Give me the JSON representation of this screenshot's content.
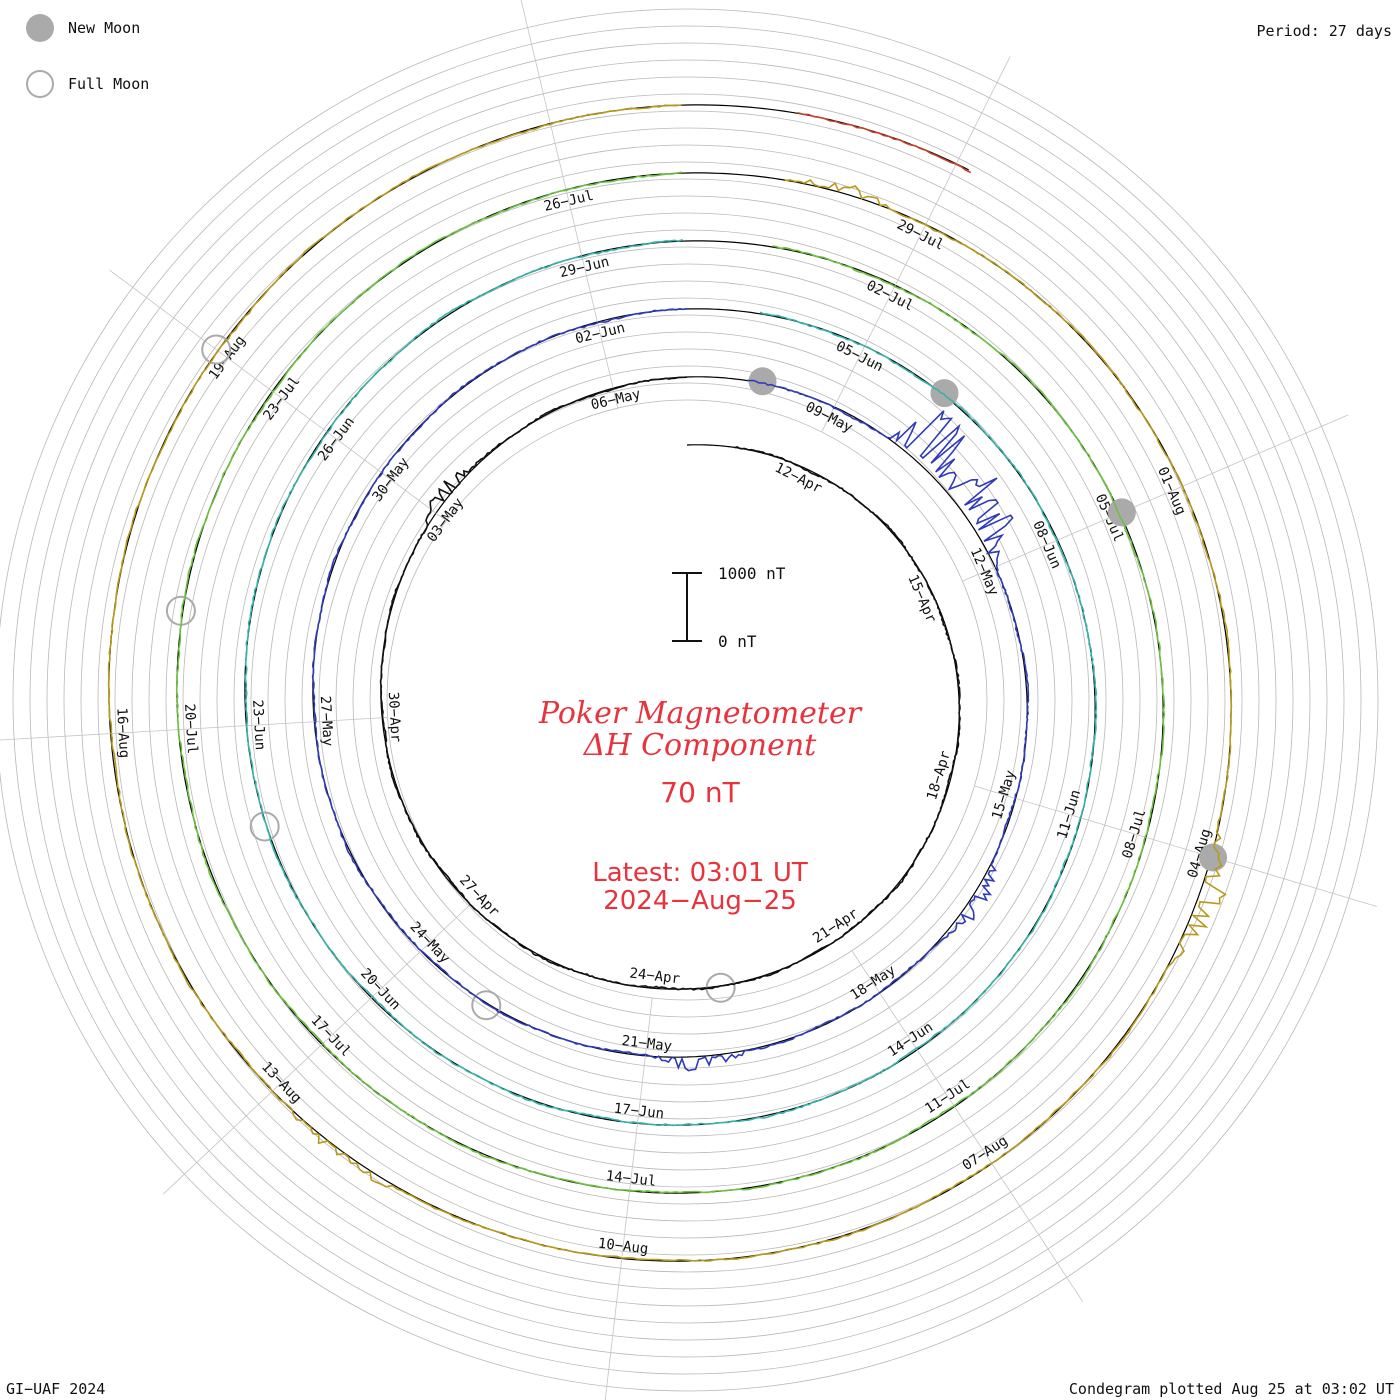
{
  "legend": {
    "new_moon": "New Moon",
    "full_moon": "Full Moon"
  },
  "period": "Period: 27 days",
  "title": {
    "station": "Poker Magnetometer",
    "component": "ΔH Component",
    "range": "70 nT",
    "latest_time": "Latest: 03:01 UT",
    "latest_date": "2024−Aug−25"
  },
  "footer": {
    "left": "GI−UAF 2024",
    "right": "Condegram plotted Aug 25 at 03:02 UT"
  },
  "colors": {
    "title": "#e8323c",
    "ring_grid": "#b8b8b8",
    "moon": "#aaaaaa"
  },
  "chart_data": {
    "type": "line",
    "period_days": 27,
    "scale_bar": {
      "top_label": "1000 nT",
      "bottom_label": "0 nT",
      "top_value": 1000,
      "bottom_value": 0
    },
    "start_date": "2024-04-10",
    "end_date": "2024-08-25",
    "date_labels": [
      "12−Apr",
      "15−Apr",
      "18−Apr",
      "21−Apr",
      "24−Apr",
      "27−Apr",
      "30−Apr",
      "03−May",
      "06−May",
      "09−May",
      "12−May",
      "15−May",
      "18−May",
      "21−May",
      "24−May",
      "27−May",
      "30−May",
      "02−Jun",
      "05−Jun",
      "08−Jun",
      "11−Jun",
      "14−Jun",
      "17−Jun",
      "20−Jun",
      "23−Jun",
      "26−Jun",
      "29−Jun",
      "02−Jul",
      "05−Jul",
      "08−Jul",
      "11−Jul",
      "14−Jul",
      "17−Jul",
      "20−Jul",
      "23−Jul",
      "26−Jul",
      "29−Jul",
      "01−Aug",
      "04−Aug",
      "07−Aug",
      "10−Aug",
      "13−Aug",
      "16−Aug",
      "19−Aug"
    ],
    "rotations": [
      {
        "start": "2024-04-10",
        "color": "#111111"
      },
      {
        "start": "2024-05-07",
        "color": "#2f3ab8"
      },
      {
        "start": "2024-06-03",
        "color": "#36b3a8"
      },
      {
        "start": "2024-06-30",
        "color": "#6cc040"
      },
      {
        "start": "2024-07-27",
        "color": "#b89a1a"
      },
      {
        "start": "2024-08-23",
        "color": "#c0402a"
      }
    ],
    "storms": [
      {
        "date": "2024-05-10",
        "peak_nT": 1000
      },
      {
        "date": "2024-05-11",
        "peak_nT": 900
      },
      {
        "date": "2024-05-16",
        "peak_nT": 300
      },
      {
        "date": "2024-05-20",
        "peak_nT": 250
      },
      {
        "date": "2024-05-03",
        "peak_nT": 250
      },
      {
        "date": "2024-08-04",
        "peak_nT": 380
      },
      {
        "date": "2024-07-28",
        "peak_nT": 150
      },
      {
        "date": "2024-08-12",
        "peak_nT": 200
      }
    ],
    "new_moons": [
      "2024-05-08",
      "2024-06-06",
      "2024-07-05",
      "2024-08-04"
    ],
    "full_moons": [
      "2024-04-23",
      "2024-05-23",
      "2024-06-22",
      "2024-07-21",
      "2024-08-19"
    ]
  }
}
